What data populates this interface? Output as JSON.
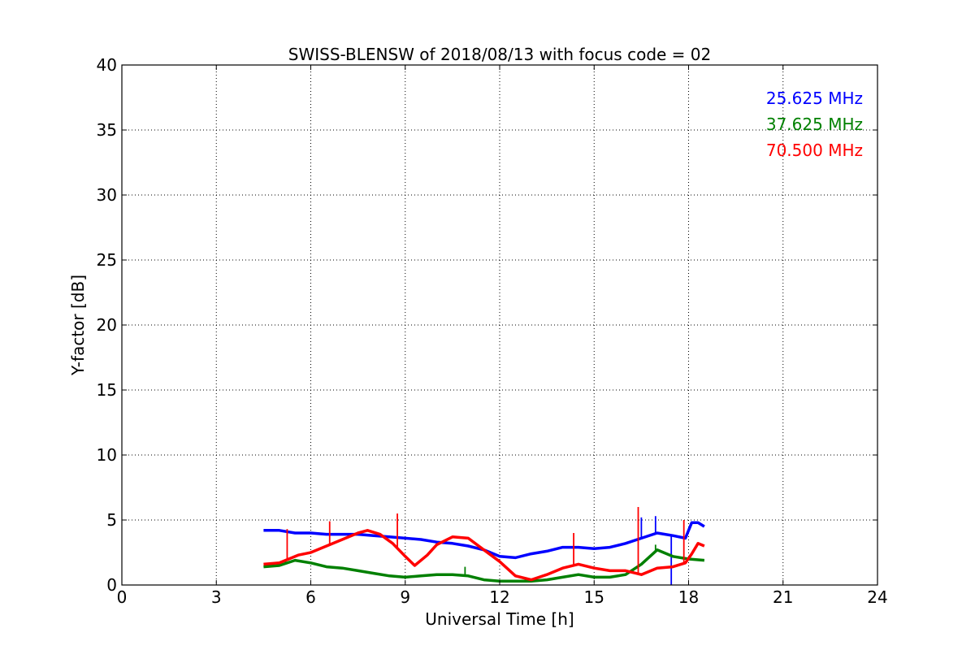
{
  "chart_data": {
    "type": "line",
    "title": "SWISS-BLENSW of 2018/08/13 with focus code = 02",
    "xlabel": "Universal Time [h]",
    "ylabel": "Y-factor [dB]",
    "xlim": [
      0,
      24
    ],
    "ylim": [
      0,
      40
    ],
    "x_ticks": [
      0,
      3,
      6,
      9,
      12,
      15,
      18,
      21,
      24
    ],
    "y_ticks": [
      0,
      5,
      10,
      15,
      20,
      25,
      30,
      35,
      40
    ],
    "grid": true,
    "legend_position": "top-right",
    "series": [
      {
        "name": "25.625 MHz",
        "color": "#0000ff",
        "points": [
          [
            4.5,
            4.2
          ],
          [
            5.0,
            4.2
          ],
          [
            5.5,
            4.0
          ],
          [
            6.0,
            4.0
          ],
          [
            6.5,
            3.9
          ],
          [
            7.0,
            3.9
          ],
          [
            7.5,
            3.9
          ],
          [
            8.0,
            3.8
          ],
          [
            8.5,
            3.7
          ],
          [
            9.0,
            3.6
          ],
          [
            9.5,
            3.5
          ],
          [
            10.0,
            3.3
          ],
          [
            10.5,
            3.2
          ],
          [
            11.0,
            3.0
          ],
          [
            11.5,
            2.7
          ],
          [
            12.0,
            2.2
          ],
          [
            12.5,
            2.1
          ],
          [
            13.0,
            2.4
          ],
          [
            13.5,
            2.6
          ],
          [
            14.0,
            2.9
          ],
          [
            14.5,
            2.9
          ],
          [
            15.0,
            2.8
          ],
          [
            15.5,
            2.9
          ],
          [
            16.0,
            3.2
          ],
          [
            16.5,
            3.6
          ],
          [
            17.0,
            4.0
          ],
          [
            17.5,
            3.8
          ],
          [
            17.9,
            3.6
          ],
          [
            18.1,
            4.8
          ],
          [
            18.3,
            4.8
          ],
          [
            18.5,
            4.5
          ]
        ],
        "spikes": [
          [
            17.45,
            0.0
          ],
          [
            16.95,
            5.3
          ],
          [
            16.5,
            5.2
          ]
        ]
      },
      {
        "name": "37.625 MHz",
        "color": "#008000",
        "points": [
          [
            4.5,
            1.4
          ],
          [
            5.0,
            1.5
          ],
          [
            5.5,
            1.9
          ],
          [
            6.0,
            1.7
          ],
          [
            6.5,
            1.4
          ],
          [
            7.0,
            1.3
          ],
          [
            7.5,
            1.1
          ],
          [
            8.0,
            0.9
          ],
          [
            8.5,
            0.7
          ],
          [
            9.0,
            0.6
          ],
          [
            9.5,
            0.7
          ],
          [
            10.0,
            0.8
          ],
          [
            10.5,
            0.8
          ],
          [
            11.0,
            0.7
          ],
          [
            11.5,
            0.4
          ],
          [
            12.0,
            0.3
          ],
          [
            12.5,
            0.3
          ],
          [
            13.0,
            0.3
          ],
          [
            13.5,
            0.4
          ],
          [
            14.0,
            0.6
          ],
          [
            14.5,
            0.8
          ],
          [
            15.0,
            0.6
          ],
          [
            15.5,
            0.6
          ],
          [
            16.0,
            0.8
          ],
          [
            16.5,
            1.6
          ],
          [
            17.0,
            2.7
          ],
          [
            17.5,
            2.2
          ],
          [
            18.0,
            2.0
          ],
          [
            18.5,
            1.9
          ]
        ],
        "spikes": [
          [
            5.2,
            2.0
          ],
          [
            10.9,
            1.4
          ],
          [
            16.95,
            3.1
          ]
        ]
      },
      {
        "name": "70.500 MHz",
        "color": "#ff0000",
        "points": [
          [
            4.5,
            1.6
          ],
          [
            5.0,
            1.7
          ],
          [
            5.3,
            2.0
          ],
          [
            5.6,
            2.3
          ],
          [
            6.0,
            2.5
          ],
          [
            6.5,
            3.0
          ],
          [
            7.0,
            3.5
          ],
          [
            7.5,
            4.0
          ],
          [
            7.8,
            4.2
          ],
          [
            8.2,
            3.9
          ],
          [
            8.6,
            3.2
          ],
          [
            9.0,
            2.2
          ],
          [
            9.3,
            1.5
          ],
          [
            9.7,
            2.3
          ],
          [
            10.0,
            3.1
          ],
          [
            10.5,
            3.7
          ],
          [
            11.0,
            3.6
          ],
          [
            11.5,
            2.7
          ],
          [
            12.0,
            1.8
          ],
          [
            12.5,
            0.7
          ],
          [
            13.0,
            0.4
          ],
          [
            13.5,
            0.8
          ],
          [
            14.0,
            1.3
          ],
          [
            14.5,
            1.6
          ],
          [
            15.0,
            1.3
          ],
          [
            15.5,
            1.1
          ],
          [
            16.0,
            1.1
          ],
          [
            16.5,
            0.8
          ],
          [
            17.0,
            1.3
          ],
          [
            17.5,
            1.4
          ],
          [
            17.9,
            1.7
          ],
          [
            18.1,
            2.4
          ],
          [
            18.3,
            3.2
          ],
          [
            18.5,
            3.0
          ]
        ],
        "spikes": [
          [
            5.25,
            4.3
          ],
          [
            6.6,
            4.9
          ],
          [
            8.75,
            5.5
          ],
          [
            14.35,
            4.0
          ],
          [
            16.4,
            6.0
          ],
          [
            17.85,
            5.0
          ]
        ]
      }
    ]
  }
}
